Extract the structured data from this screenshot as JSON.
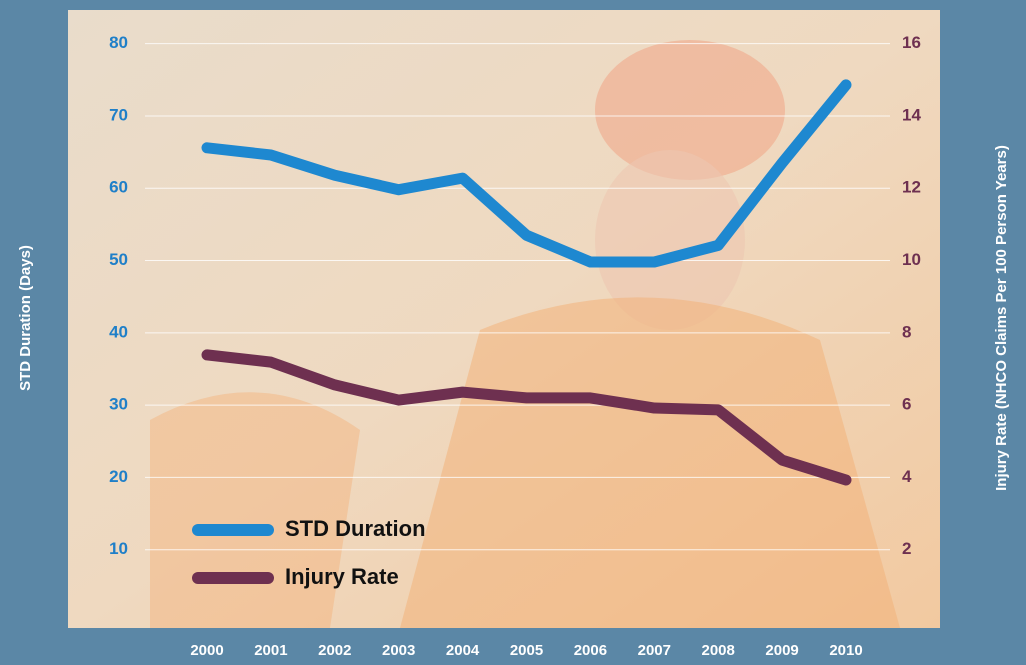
{
  "chart_data": {
    "type": "line",
    "categories": [
      "2000",
      "2001",
      "2002",
      "2003",
      "2004",
      "2005",
      "2006",
      "2007",
      "2008",
      "2009",
      "2010"
    ],
    "series": [
      {
        "name": "STD Duration",
        "color": "#1e88d0",
        "values": [
          65.6,
          64.6,
          61.8,
          59.8,
          61.4,
          53.5,
          49.8,
          49.8,
          52.1,
          63.5,
          74.3
        ]
      },
      {
        "name": "Injury Rate",
        "color": "#6e3050",
        "axis": "y2",
        "values": [
          7.39,
          7.19,
          6.56,
          6.14,
          6.36,
          6.2,
          6.2,
          5.92,
          5.87,
          4.48,
          3.93
        ]
      }
    ],
    "ylabel": "STD Duration (Days)",
    "y2label": "Injury Rate (NHCO Claims Per 100 Person Years)",
    "ylim": [
      0,
      83
    ],
    "yticks": [
      10,
      20,
      30,
      40,
      50,
      60,
      70,
      80
    ],
    "y2lim": [
      0,
      16.6
    ],
    "y2ticks": [
      2,
      4,
      6,
      8,
      10,
      12,
      14,
      16
    ],
    "grid": true,
    "legend": "lower left"
  }
}
